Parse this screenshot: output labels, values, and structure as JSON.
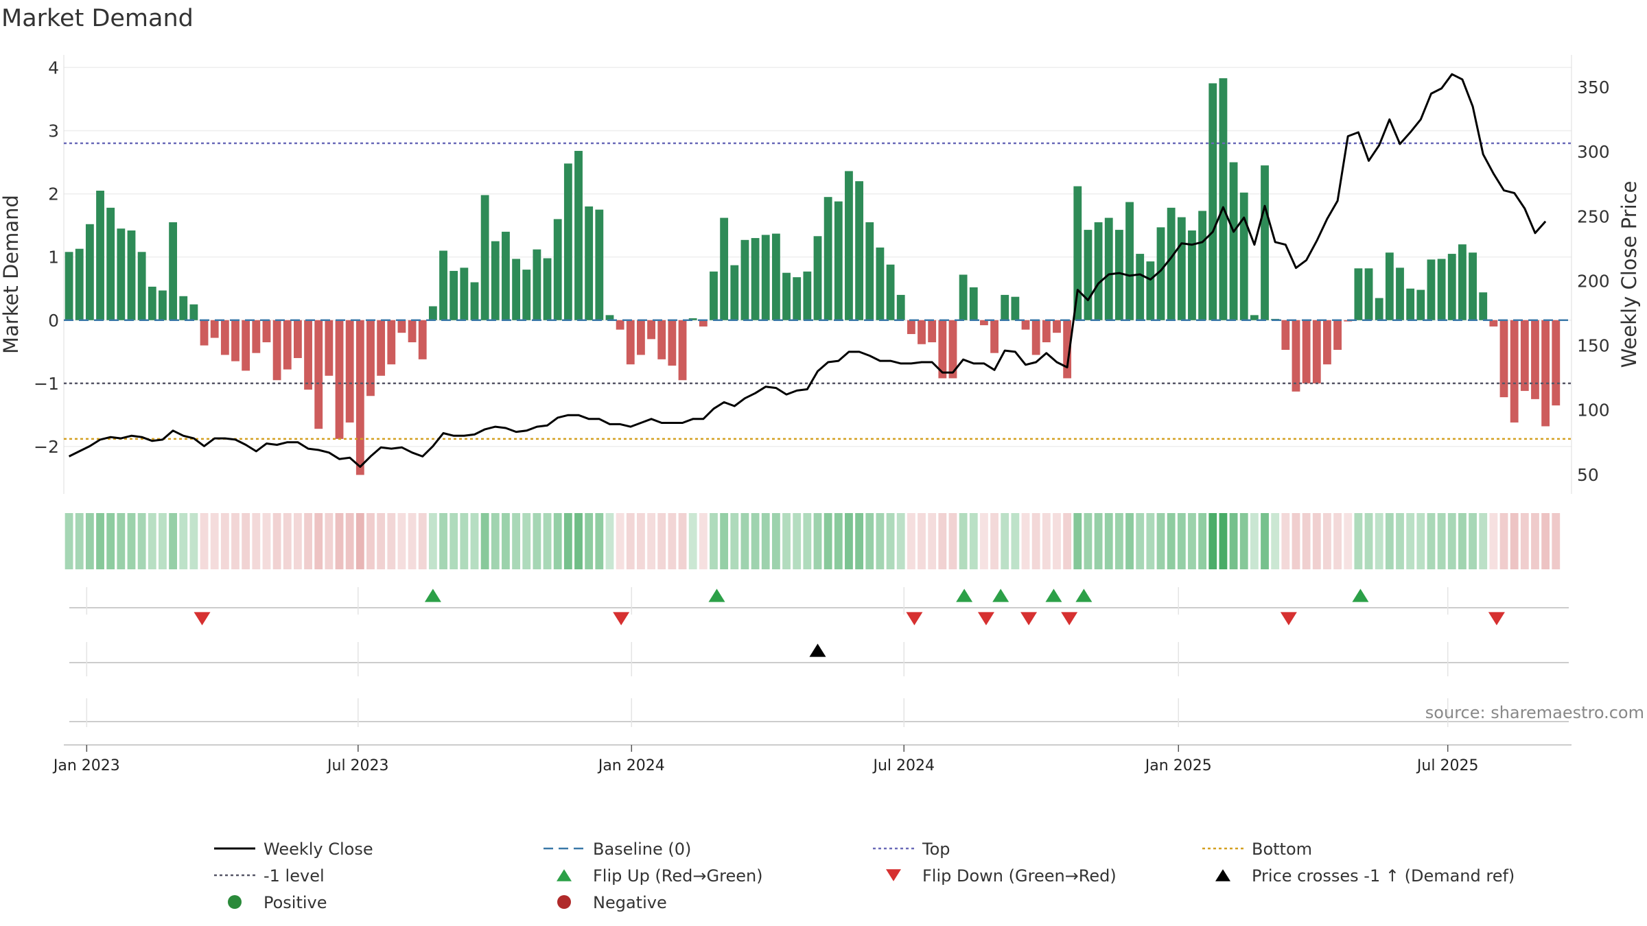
{
  "chart_data": {
    "type": "bar",
    "title": "Market Demand",
    "ylabel_left": "Market Demand",
    "ylabel_right": "Weekly Close Price",
    "ylim_left": [
      -2.75,
      4.2
    ],
    "ylim_right": [
      35,
      375
    ],
    "yticks_left": [
      {
        "v": 4,
        "label": "4"
      },
      {
        "v": 3,
        "label": "3"
      },
      {
        "v": 2,
        "label": "2"
      },
      {
        "v": 1,
        "label": "1"
      },
      {
        "v": 0,
        "label": "0"
      },
      {
        "v": -1,
        "label": "−1"
      },
      {
        "v": -2,
        "label": "−2"
      }
    ],
    "yticks_right": [
      {
        "v": 350,
        "label": "350"
      },
      {
        "v": 300,
        "label": "300"
      },
      {
        "v": 250,
        "label": "250"
      },
      {
        "v": 200,
        "label": "200"
      },
      {
        "v": 150,
        "label": "150"
      },
      {
        "v": 100,
        "label": "100"
      },
      {
        "v": 50,
        "label": "50"
      }
    ],
    "x_range_weeks": [
      0,
      145
    ],
    "xticks": [
      {
        "w": 2.2,
        "label": "Jan 2023"
      },
      {
        "w": 28.3,
        "label": "Jul 2023"
      },
      {
        "w": 54.6,
        "label": "Jan 2024"
      },
      {
        "w": 80.8,
        "label": "Jul 2024"
      },
      {
        "w": 107.2,
        "label": "Jan 2025"
      },
      {
        "w": 133.1,
        "label": "Jul 2025"
      }
    ],
    "lines": {
      "top": 2.8,
      "bottom": -1.88,
      "minus_one": -1,
      "baseline": 0
    },
    "demand": [
      1.08,
      1.13,
      1.52,
      2.05,
      1.78,
      1.45,
      1.42,
      1.08,
      0.53,
      0.47,
      1.55,
      0.38,
      0.25,
      -0.4,
      -0.28,
      -0.55,
      -0.65,
      -0.8,
      -0.52,
      -0.35,
      -0.95,
      -0.78,
      -0.6,
      -1.1,
      -1.72,
      -0.88,
      -1.88,
      -1.62,
      -2.45,
      -1.2,
      -0.88,
      -0.7,
      -0.2,
      -0.35,
      -0.62,
      0.22,
      1.1,
      0.78,
      0.83,
      0.6,
      1.98,
      1.25,
      1.4,
      0.97,
      0.8,
      1.12,
      0.98,
      1.6,
      2.48,
      2.68,
      1.8,
      1.75,
      0.08,
      -0.15,
      -0.7,
      -0.55,
      -0.3,
      -0.62,
      -0.72,
      -0.95,
      0.03,
      -0.1,
      0.77,
      1.62,
      0.87,
      1.27,
      1.3,
      1.35,
      1.37,
      0.75,
      0.68,
      0.77,
      1.33,
      1.95,
      1.88,
      2.36,
      2.2,
      1.55,
      1.15,
      0.88,
      0.4,
      -0.22,
      -0.38,
      -0.35,
      -0.92,
      -0.92,
      0.72,
      0.52,
      -0.08,
      -0.52,
      0.4,
      0.37,
      -0.15,
      -0.55,
      -0.35,
      -0.2,
      -0.92,
      2.12,
      1.43,
      1.55,
      1.62,
      1.43,
      1.87,
      1.05,
      0.93,
      1.47,
      1.78,
      1.63,
      1.42,
      1.73,
      3.75,
      3.83,
      2.5,
      2.02,
      0.08,
      2.45,
      0.02,
      -0.47,
      -1.13,
      -1.0,
      -1.0,
      -0.7,
      -0.47,
      -0.02,
      0.82,
      0.82,
      0.35,
      1.07,
      0.83,
      0.5,
      0.48,
      0.96,
      0.97,
      1.05,
      1.2,
      1.07,
      0.44,
      -0.1,
      -1.22,
      -1.62,
      -1.12,
      -1.25,
      -1.68,
      -1.35
    ],
    "weekly_close": [
      [
        0,
        64
      ],
      [
        1,
        68
      ],
      [
        2,
        72
      ],
      [
        3,
        77
      ],
      [
        4,
        79
      ],
      [
        5,
        78
      ],
      [
        6,
        80
      ],
      [
        7,
        79
      ],
      [
        8,
        76
      ],
      [
        9,
        77
      ],
      [
        10,
        84
      ],
      [
        11,
        80
      ],
      [
        12,
        78
      ],
      [
        13,
        72
      ],
      [
        14,
        78
      ],
      [
        15,
        78
      ],
      [
        16,
        77
      ],
      [
        17,
        73
      ],
      [
        18,
        68
      ],
      [
        19,
        74
      ],
      [
        20,
        73
      ],
      [
        21,
        75
      ],
      [
        22,
        75
      ],
      [
        23,
        70
      ],
      [
        24,
        69
      ],
      [
        25,
        67
      ],
      [
        26,
        62
      ],
      [
        27,
        63
      ],
      [
        28,
        56
      ],
      [
        29,
        64
      ],
      [
        30,
        71
      ],
      [
        31,
        70
      ],
      [
        32,
        71
      ],
      [
        33,
        67
      ],
      [
        34,
        64
      ],
      [
        35,
        72
      ],
      [
        36,
        82
      ],
      [
        37,
        80
      ],
      [
        38,
        80
      ],
      [
        39,
        81
      ],
      [
        40,
        85
      ],
      [
        41,
        87
      ],
      [
        42,
        86
      ],
      [
        43,
        83
      ],
      [
        44,
        84
      ],
      [
        45,
        87
      ],
      [
        46,
        88
      ],
      [
        47,
        94
      ],
      [
        48,
        96
      ],
      [
        49,
        96
      ],
      [
        50,
        93
      ],
      [
        51,
        93
      ],
      [
        52,
        89
      ],
      [
        53,
        89
      ],
      [
        54,
        87
      ],
      [
        55,
        90
      ],
      [
        56,
        93
      ],
      [
        57,
        90
      ],
      [
        58,
        90
      ],
      [
        59,
        90
      ],
      [
        60,
        93
      ],
      [
        61,
        93
      ],
      [
        62,
        101
      ],
      [
        63,
        106
      ],
      [
        64,
        103
      ],
      [
        65,
        109
      ],
      [
        66,
        113
      ],
      [
        67,
        118
      ],
      [
        68,
        117
      ],
      [
        69,
        112
      ],
      [
        70,
        115
      ],
      [
        71,
        116
      ],
      [
        72,
        130
      ],
      [
        73,
        137
      ],
      [
        74,
        138
      ],
      [
        75,
        145
      ],
      [
        76,
        145
      ],
      [
        77,
        142
      ],
      [
        78,
        138
      ],
      [
        79,
        138
      ],
      [
        80,
        136
      ],
      [
        81,
        136
      ],
      [
        82,
        137
      ],
      [
        83,
        137
      ],
      [
        84,
        129
      ],
      [
        85,
        129
      ],
      [
        86,
        139
      ],
      [
        87,
        136
      ],
      [
        88,
        136
      ],
      [
        89,
        131
      ],
      [
        90,
        146
      ],
      [
        91,
        145
      ],
      [
        92,
        135
      ],
      [
        93,
        137
      ],
      [
        94,
        144
      ],
      [
        95,
        137
      ],
      [
        96,
        133
      ],
      [
        97,
        193
      ],
      [
        98,
        185
      ],
      [
        99,
        198
      ],
      [
        100,
        205
      ],
      [
        101,
        206
      ],
      [
        102,
        204
      ],
      [
        103,
        205
      ],
      [
        104,
        201
      ],
      [
        105,
        208
      ],
      [
        106,
        218
      ],
      [
        107,
        229
      ],
      [
        108,
        228
      ],
      [
        109,
        230
      ],
      [
        110,
        238
      ],
      [
        111,
        257
      ],
      [
        112,
        238
      ],
      [
        113,
        249
      ],
      [
        114,
        228
      ],
      [
        115,
        258
      ],
      [
        116,
        230
      ],
      [
        117,
        228
      ],
      [
        118,
        210
      ],
      [
        119,
        216
      ],
      [
        120,
        231
      ],
      [
        121,
        248
      ],
      [
        122,
        262
      ],
      [
        123,
        312
      ],
      [
        124,
        315
      ],
      [
        125,
        293
      ],
      [
        126,
        305
      ],
      [
        127,
        325
      ],
      [
        128,
        306
      ],
      [
        129,
        315
      ],
      [
        130,
        325
      ],
      [
        131,
        345
      ],
      [
        132,
        349
      ],
      [
        133,
        360
      ],
      [
        134,
        356
      ],
      [
        135,
        335
      ],
      [
        136,
        298
      ],
      [
        137,
        283
      ],
      [
        138,
        270
      ],
      [
        139,
        268
      ],
      [
        140,
        256
      ],
      [
        141,
        237
      ],
      [
        142,
        246
      ]
    ],
    "flip_up_weeks": [
      35.5,
      62.8,
      86.6,
      90.1,
      95.2,
      98.1,
      124.7
    ],
    "flip_down_weeks": [
      13.3,
      53.6,
      81.8,
      88.7,
      92.8,
      96.7,
      117.8,
      137.8
    ],
    "price_cross_weeks": [
      72.5
    ],
    "source": "source: sharemaestro.com",
    "legend": [
      {
        "key": "weekly-close",
        "label": "Weekly Close",
        "style": "solid-line",
        "color": "#000000"
      },
      {
        "key": "baseline",
        "label": "Baseline (0)",
        "style": "dashed-line",
        "color": "#3a78a8"
      },
      {
        "key": "top",
        "label": "Top",
        "style": "dotted-line",
        "color": "#6a6ab8"
      },
      {
        "key": "bottom",
        "label": "Bottom",
        "style": "dotted-line",
        "color": "#d4a020"
      },
      {
        "key": "minus-one",
        "label": "-1 level",
        "style": "dotted-line",
        "color": "#555566"
      },
      {
        "key": "flip-up",
        "label": "Flip Up (Red→Green)",
        "style": "triangle-up",
        "color": "#2ca048"
      },
      {
        "key": "flip-down",
        "label": "Flip Down (Green→Red)",
        "style": "triangle-down",
        "color": "#d63030"
      },
      {
        "key": "price-cross",
        "label": "Price crosses -1 ↑ (Demand ref)",
        "style": "triangle-up",
        "color": "#000000"
      },
      {
        "key": "positive",
        "label": "Positive",
        "style": "dot",
        "color": "#2a8a3a"
      },
      {
        "key": "negative",
        "label": "Negative",
        "style": "dot",
        "color": "#b02a2a"
      }
    ],
    "colors": {
      "positive_bar": "#2e8b57",
      "negative_bar": "#cd5c5c",
      "grid": "#eeeeee"
    }
  }
}
